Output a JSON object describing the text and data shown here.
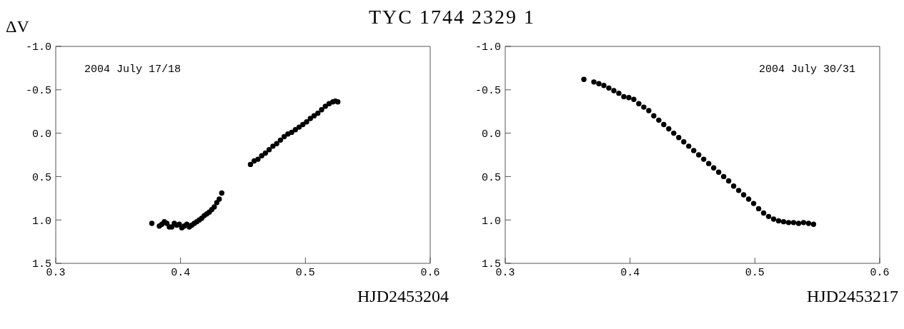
{
  "chart_data": [
    {
      "type": "scatter",
      "title": "TYC 1744 2329 1",
      "ylabel": "ΔV",
      "xlabel": "HJD2453204",
      "annotations": [
        "2004 July 17/18"
      ],
      "marker": "circle",
      "grid": false,
      "legend": false,
      "xlim": [
        0.3,
        0.6
      ],
      "xticks": [
        0.3,
        0.4,
        0.5,
        0.6
      ],
      "ylim": [
        1.5,
        -1.0
      ],
      "yticks": [
        {
          "value": -1.0,
          "label": "-1.0"
        },
        {
          "value": -0.5,
          "label": "-0.5"
        },
        {
          "value": 0.0,
          "label": "0.0"
        },
        {
          "value": 0.5,
          "label": "0.5"
        },
        {
          "value": 1.0,
          "label": "1.0"
        },
        {
          "value": 1.5,
          "label": "1.5"
        }
      ],
      "series": [
        {
          "color": "#000000",
          "x": [
            0.377,
            0.383,
            0.385,
            0.387,
            0.389,
            0.391,
            0.393,
            0.395,
            0.397,
            0.399,
            0.401,
            0.403,
            0.405,
            0.407,
            0.409,
            0.411,
            0.413,
            0.415,
            0.417,
            0.419,
            0.421,
            0.423,
            0.425,
            0.427,
            0.429,
            0.431,
            0.433,
            0.456,
            0.459,
            0.462,
            0.465,
            0.468,
            0.471,
            0.474,
            0.477,
            0.48,
            0.483,
            0.486,
            0.489,
            0.492,
            0.495,
            0.498,
            0.501,
            0.504,
            0.507,
            0.51,
            0.513,
            0.516,
            0.519,
            0.522,
            0.524,
            0.526
          ],
          "values": [
            1.04,
            1.07,
            1.05,
            1.02,
            1.04,
            1.08,
            1.08,
            1.04,
            1.06,
            1.05,
            1.09,
            1.07,
            1.05,
            1.08,
            1.06,
            1.04,
            1.02,
            1.0,
            0.98,
            0.95,
            0.93,
            0.91,
            0.88,
            0.85,
            0.8,
            0.76,
            0.69,
            0.36,
            0.32,
            0.3,
            0.26,
            0.23,
            0.19,
            0.15,
            0.12,
            0.08,
            0.04,
            0.01,
            -0.01,
            -0.04,
            -0.07,
            -0.1,
            -0.13,
            -0.17,
            -0.2,
            -0.23,
            -0.27,
            -0.31,
            -0.34,
            -0.36,
            -0.37,
            -0.36
          ]
        }
      ]
    },
    {
      "type": "scatter",
      "xlabel": "HJD2453217",
      "annotations": [
        "2004 July 30/31"
      ],
      "marker": "circle",
      "grid": false,
      "legend": false,
      "xlim": [
        0.3,
        0.6
      ],
      "xticks": [
        0.3,
        0.4,
        0.5,
        0.6
      ],
      "ylim": [
        1.5,
        -1.0
      ],
      "yticks": [
        {
          "value": -1.0,
          "label": "-1.0"
        },
        {
          "value": -0.5,
          "label": "-0.5"
        },
        {
          "value": 0.0,
          "label": "0.0"
        },
        {
          "value": 0.5,
          "label": "0.5"
        },
        {
          "value": 1.0,
          "label": "1.0"
        },
        {
          "value": 1.5,
          "label": "1.5"
        }
      ],
      "series": [
        {
          "color": "#000000",
          "x": [
            0.363,
            0.371,
            0.375,
            0.379,
            0.383,
            0.387,
            0.391,
            0.395,
            0.399,
            0.403,
            0.407,
            0.411,
            0.415,
            0.419,
            0.423,
            0.427,
            0.431,
            0.435,
            0.439,
            0.443,
            0.447,
            0.451,
            0.455,
            0.459,
            0.463,
            0.467,
            0.471,
            0.475,
            0.479,
            0.483,
            0.487,
            0.491,
            0.495,
            0.499,
            0.503,
            0.507,
            0.511,
            0.515,
            0.519,
            0.523,
            0.527,
            0.531,
            0.535,
            0.539,
            0.543,
            0.547
          ],
          "values": [
            -0.62,
            -0.59,
            -0.57,
            -0.55,
            -0.52,
            -0.49,
            -0.46,
            -0.42,
            -0.41,
            -0.39,
            -0.34,
            -0.3,
            -0.26,
            -0.2,
            -0.15,
            -0.1,
            -0.05,
            0.0,
            0.05,
            0.1,
            0.15,
            0.2,
            0.25,
            0.3,
            0.35,
            0.4,
            0.45,
            0.5,
            0.55,
            0.61,
            0.66,
            0.71,
            0.76,
            0.81,
            0.87,
            0.92,
            0.96,
            0.99,
            1.01,
            1.02,
            1.03,
            1.03,
            1.04,
            1.03,
            1.04,
            1.05
          ]
        }
      ]
    }
  ]
}
